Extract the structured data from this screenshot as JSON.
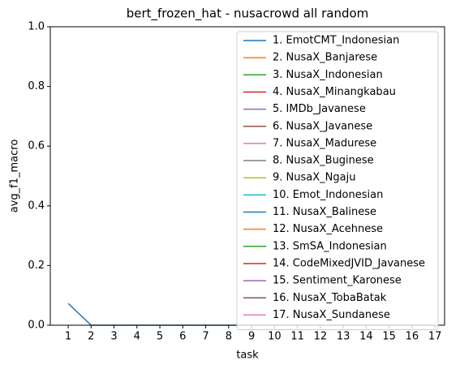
{
  "chart_data": {
    "type": "line",
    "title": "bert_frozen_hat - nusacrowd all random",
    "x_label": "task",
    "y_label": "avg_f1_macro",
    "x": [
      1,
      2,
      3,
      4,
      5,
      6,
      7,
      8,
      9,
      10,
      11,
      12,
      13,
      14,
      15,
      16,
      17
    ],
    "xlim": [
      0.22,
      17.42
    ],
    "xticks": [
      1,
      2,
      3,
      4,
      5,
      6,
      7,
      8,
      9,
      10,
      11,
      12,
      13,
      14,
      15,
      16,
      17
    ],
    "ylim": [
      0,
      1
    ],
    "yticks": [
      {
        "value": 0,
        "label": "0.0"
      },
      {
        "value": 0.2,
        "label": "0.2"
      },
      {
        "value": 0.4,
        "label": "0.4"
      },
      {
        "value": 0.6,
        "label": "0.6"
      },
      {
        "value": 0.8,
        "label": "0.8"
      },
      {
        "value": 1,
        "label": "1.0"
      }
    ],
    "legend": "upper right",
    "series": [
      {
        "name": "1. EmotCMT_Indonesian",
        "color": "#1f77b4",
        "values": [
          0.073,
          0,
          0,
          0,
          0,
          0,
          0,
          0,
          0,
          0,
          0,
          0,
          0,
          0,
          0,
          0,
          0
        ]
      },
      {
        "name": "2. NusaX_Banjarese",
        "color": "#ff7f0e",
        "values": [
          null,
          null,
          null,
          null,
          null,
          null,
          null,
          null,
          null,
          null,
          null,
          null,
          null,
          null,
          null,
          null,
          null
        ]
      },
      {
        "name": "3. NusaX_Indonesian",
        "color": "#2ca02c",
        "values": [
          null,
          null,
          null,
          null,
          null,
          null,
          null,
          null,
          null,
          null,
          null,
          null,
          null,
          null,
          null,
          null,
          null
        ]
      },
      {
        "name": "4. NusaX_Minangkabau",
        "color": "#d62728",
        "values": [
          null,
          null,
          null,
          null,
          null,
          null,
          null,
          null,
          null,
          null,
          null,
          null,
          null,
          null,
          null,
          null,
          null
        ]
      },
      {
        "name": "5. IMDb_Javanese",
        "color": "#9467bd",
        "values": [
          null,
          null,
          null,
          null,
          null,
          null,
          null,
          null,
          null,
          null,
          null,
          null,
          null,
          null,
          null,
          null,
          null
        ]
      },
      {
        "name": "6. NusaX_Javanese",
        "color": "#8c564b",
        "values": [
          null,
          null,
          null,
          null,
          null,
          null,
          null,
          null,
          null,
          null,
          null,
          null,
          null,
          null,
          null,
          null,
          null
        ]
      },
      {
        "name": "7. NusaX_Madurese",
        "color": "#e377c2",
        "values": [
          null,
          null,
          null,
          null,
          null,
          null,
          null,
          null,
          null,
          null,
          null,
          null,
          null,
          null,
          null,
          null,
          null
        ]
      },
      {
        "name": "8. NusaX_Buginese",
        "color": "#7f7f7f",
        "values": [
          null,
          null,
          null,
          null,
          null,
          null,
          null,
          null,
          null,
          null,
          null,
          null,
          null,
          null,
          null,
          null,
          null
        ]
      },
      {
        "name": "9. NusaX_Ngaju",
        "color": "#bcbd22",
        "values": [
          null,
          null,
          null,
          null,
          null,
          null,
          null,
          null,
          null,
          null,
          null,
          null,
          null,
          null,
          null,
          null,
          null
        ]
      },
      {
        "name": "10. Emot_Indonesian",
        "color": "#17becf",
        "values": [
          null,
          null,
          null,
          null,
          null,
          null,
          null,
          null,
          null,
          null,
          null,
          null,
          null,
          null,
          null,
          null,
          null
        ]
      },
      {
        "name": "11. NusaX_Balinese",
        "color": "#1f77b4",
        "values": [
          null,
          null,
          null,
          null,
          null,
          null,
          null,
          null,
          null,
          null,
          null,
          null,
          null,
          null,
          null,
          null,
          null
        ]
      },
      {
        "name": "12. NusaX_Acehnese",
        "color": "#ff7f0e",
        "values": [
          null,
          null,
          null,
          null,
          null,
          null,
          null,
          null,
          null,
          null,
          null,
          null,
          null,
          null,
          null,
          null,
          null
        ]
      },
      {
        "name": "13. SmSA_Indonesian",
        "color": "#2ca02c",
        "values": [
          null,
          null,
          null,
          null,
          null,
          null,
          null,
          null,
          null,
          null,
          null,
          null,
          null,
          null,
          null,
          null,
          null
        ]
      },
      {
        "name": "14. CodeMixedJVID_Javanese",
        "color": "#d62728",
        "values": [
          null,
          null,
          null,
          null,
          null,
          null,
          null,
          null,
          null,
          null,
          null,
          null,
          null,
          null,
          null,
          null,
          null
        ]
      },
      {
        "name": "15. Sentiment_Karonese",
        "color": "#9467bd",
        "values": [
          null,
          null,
          null,
          null,
          null,
          null,
          null,
          null,
          null,
          null,
          null,
          null,
          null,
          null,
          null,
          null,
          null
        ]
      },
      {
        "name": "16. NusaX_TobaBatak",
        "color": "#8c564b",
        "values": [
          null,
          null,
          null,
          null,
          null,
          null,
          null,
          null,
          null,
          null,
          null,
          null,
          null,
          null,
          null,
          null,
          null
        ]
      },
      {
        "name": "17. NusaX_Sundanese",
        "color": "#e377c2",
        "values": [
          null,
          null,
          null,
          null,
          null,
          null,
          null,
          null,
          null,
          null,
          null,
          null,
          null,
          null,
          null,
          null,
          null
        ]
      }
    ]
  }
}
